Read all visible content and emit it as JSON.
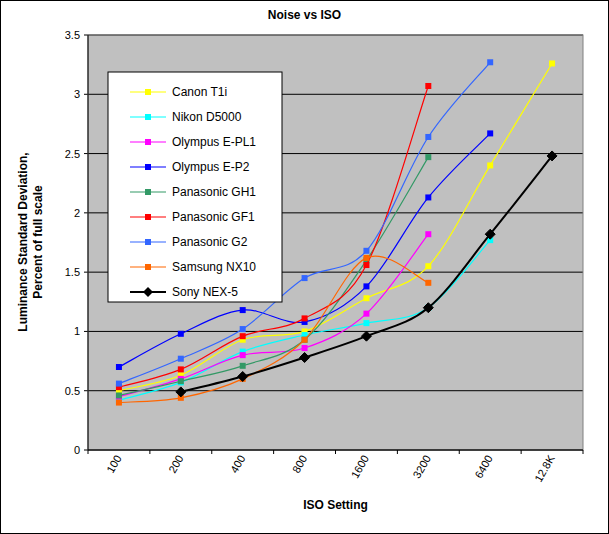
{
  "chart_data": {
    "type": "line",
    "title": "Noise vs ISO",
    "x_label": "ISO Setting",
    "y_label": "Luminance Standard Deviation, Percent of full scale",
    "categories": [
      "100",
      "200",
      "400",
      "800",
      "1600",
      "3200",
      "6400",
      "12.8K"
    ],
    "ylim": [
      0,
      3.5
    ],
    "yticks": [
      0,
      0.5,
      1,
      1.5,
      2,
      2.5,
      3,
      3.5
    ],
    "grid": true,
    "legend": "top-left",
    "line_style": "smooth",
    "series": [
      {
        "name": "Canon T1i",
        "color": "#ffff00",
        "marker": "square",
        "values": [
          0.5,
          0.63,
          0.93,
          1.0,
          1.28,
          1.55,
          2.4,
          3.26
        ]
      },
      {
        "name": "Nikon D5000",
        "color": "#00ffff",
        "marker": "square",
        "values": [
          0.42,
          0.57,
          0.83,
          0.97,
          1.07,
          1.2,
          1.77,
          null
        ]
      },
      {
        "name": "Olympus E-PL1",
        "color": "#ff00ff",
        "marker": "square",
        "values": [
          0.45,
          0.6,
          0.8,
          0.86,
          1.15,
          1.82,
          null,
          null
        ]
      },
      {
        "name": "Olympus E-P2",
        "color": "#0000ff",
        "marker": "square",
        "values": [
          0.7,
          0.98,
          1.18,
          1.08,
          1.38,
          2.13,
          2.67,
          null
        ]
      },
      {
        "name": "Panasonic GH1",
        "color": "#339966",
        "marker": "square",
        "values": [
          0.46,
          0.58,
          0.71,
          0.93,
          1.6,
          2.47,
          null,
          null
        ]
      },
      {
        "name": "Panasonic GF1",
        "color": "#ff0000",
        "marker": "square",
        "values": [
          0.53,
          0.68,
          0.96,
          1.11,
          1.56,
          3.07,
          null,
          null
        ]
      },
      {
        "name": "Panasonic G2",
        "color": "#3366ff",
        "marker": "square",
        "values": [
          0.56,
          0.77,
          1.02,
          1.45,
          1.68,
          2.64,
          3.27,
          null
        ]
      },
      {
        "name": "Samsung NX10",
        "color": "#ff6600",
        "marker": "square",
        "values": [
          0.4,
          0.44,
          0.6,
          0.93,
          1.62,
          1.41,
          null,
          null
        ]
      },
      {
        "name": "Sony NEX-5",
        "color": "#000000",
        "marker": "diamond",
        "values": [
          null,
          0.49,
          0.62,
          0.78,
          0.96,
          1.2,
          1.82,
          2.48
        ]
      }
    ]
  }
}
